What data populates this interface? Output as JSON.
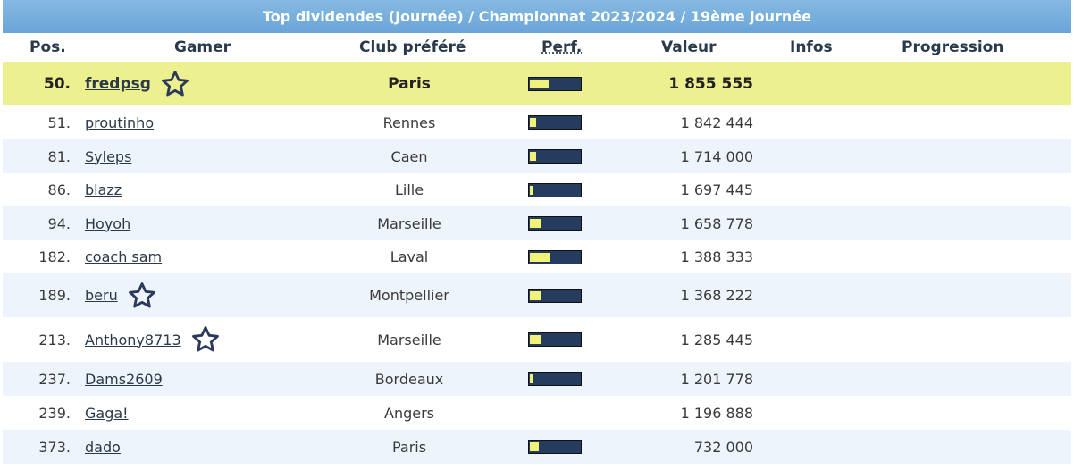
{
  "title": "Top dividendes (Journée) / Championnat 2023/2024 / 19ème journée",
  "columns": {
    "pos": "Pos.",
    "gamer": "Gamer",
    "club": "Club préféré",
    "perf": "Perf.",
    "valeur": "Valeur",
    "infos": "Infos",
    "progression": "Progression"
  },
  "rows": [
    {
      "pos": "50.",
      "gamer": "fredpsg",
      "club": "Paris",
      "perf": 0.38,
      "valeur": "1 855 555",
      "star": true,
      "highlight": true
    },
    {
      "pos": "51.",
      "gamer": "proutinho",
      "club": "Rennes",
      "perf": 0.12,
      "valeur": "1 842 444",
      "star": false
    },
    {
      "pos": "81.",
      "gamer": "Syleps",
      "club": "Caen",
      "perf": 0.13,
      "valeur": "1 714 000",
      "star": false
    },
    {
      "pos": "86.",
      "gamer": "blazz",
      "club": "Lille",
      "perf": 0.05,
      "valeur": "1 697 445",
      "star": false
    },
    {
      "pos": "94.",
      "gamer": "Hoyoh",
      "club": "Marseille",
      "perf": 0.22,
      "valeur": "1 658 778",
      "star": false
    },
    {
      "pos": "182.",
      "gamer": "coach sam",
      "club": "Laval",
      "perf": 0.4,
      "valeur": "1 388 333",
      "star": false
    },
    {
      "pos": "189.",
      "gamer": "beru",
      "club": "Montpellier",
      "perf": 0.22,
      "valeur": "1 368 222",
      "star": true
    },
    {
      "pos": "213.",
      "gamer": "Anthony8713",
      "club": "Marseille",
      "perf": 0.24,
      "valeur": "1 285 445",
      "star": true
    },
    {
      "pos": "237.",
      "gamer": "Dams2609",
      "club": "Bordeaux",
      "perf": 0.05,
      "valeur": "1 201 778",
      "star": false
    },
    {
      "pos": "239.",
      "gamer": "Gaga!",
      "club": "Angers",
      "perf": null,
      "valeur": "1 196 888",
      "star": false
    },
    {
      "pos": "373.",
      "gamer": "dado",
      "club": "Paris",
      "perf": 0.18,
      "valeur": "732 000",
      "star": false
    }
  ]
}
